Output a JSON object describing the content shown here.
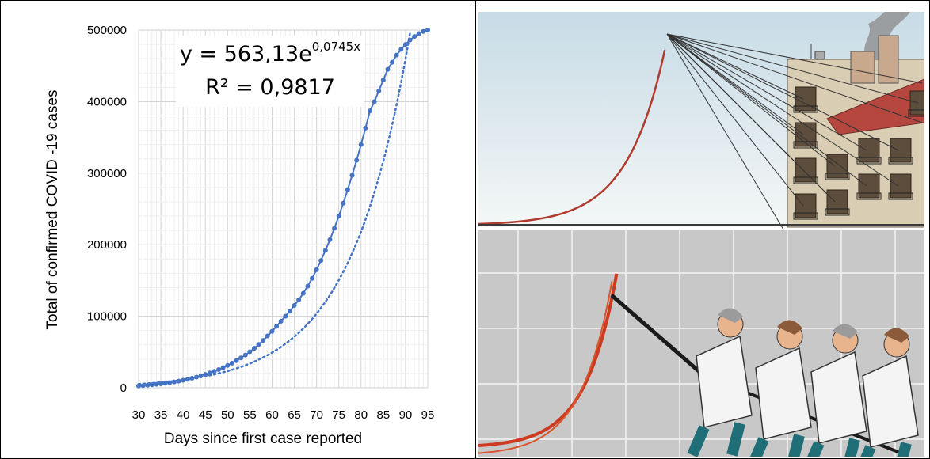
{
  "chart_data": {
    "type": "scatter",
    "xlabel": "Days since first case reported",
    "ylabel": "Total of confirmed COVID -19 cases",
    "xlim": [
      30,
      95
    ],
    "ylim": [
      0,
      500000
    ],
    "x_ticks": [
      "30",
      "35",
      "40",
      "45",
      "50",
      "55",
      "60",
      "65",
      "70",
      "75",
      "80",
      "85",
      "90",
      "95"
    ],
    "y_ticks": [
      "0",
      "100000",
      "200000",
      "300000",
      "400000",
      "500000"
    ],
    "grid": true,
    "trendline": {
      "type": "exponential",
      "a": 563.13,
      "b": 0.0745,
      "style": "dotted"
    },
    "equation": {
      "prefix": "y = 563,13e",
      "exponent": "0,0745x",
      "r2": "R² = 0,9817"
    },
    "series": [
      {
        "color": "#4472c4",
        "x": [
          30,
          31,
          32,
          33,
          34,
          35,
          36,
          37,
          38,
          39,
          40,
          41,
          42,
          43,
          44,
          45,
          46,
          47,
          48,
          49,
          50,
          51,
          52,
          53,
          54,
          55,
          56,
          57,
          58,
          59,
          60,
          61,
          62,
          63,
          64,
          65,
          66,
          67,
          68,
          69,
          70,
          71,
          72,
          73,
          74,
          75,
          76,
          77,
          78,
          79,
          80,
          81,
          82,
          83,
          84,
          85,
          86,
          87,
          88,
          89,
          90,
          91,
          92,
          93,
          94,
          95
        ],
        "y": [
          2500,
          3000,
          3600,
          4200,
          4800,
          5500,
          6300,
          7200,
          8200,
          9300,
          10500,
          11800,
          13300,
          14900,
          16700,
          18600,
          20700,
          23000,
          25500,
          28200,
          31200,
          34400,
          37900,
          41700,
          45800,
          50300,
          55200,
          60500,
          66200,
          72400,
          79000,
          86000,
          93000,
          100000,
          107000,
          115000,
          123000,
          132000,
          142000,
          153000,
          165000,
          178000,
          192000,
          207000,
          223000,
          240000,
          258000,
          277000,
          297000,
          318000,
          340000,
          363000,
          387000,
          400000,
          415000,
          430000,
          445000,
          455000,
          465000,
          473000,
          480000,
          486000,
          491000,
          495000,
          498000,
          500000
        ]
      }
    ]
  },
  "cartoon": {
    "description_hidden": true
  }
}
